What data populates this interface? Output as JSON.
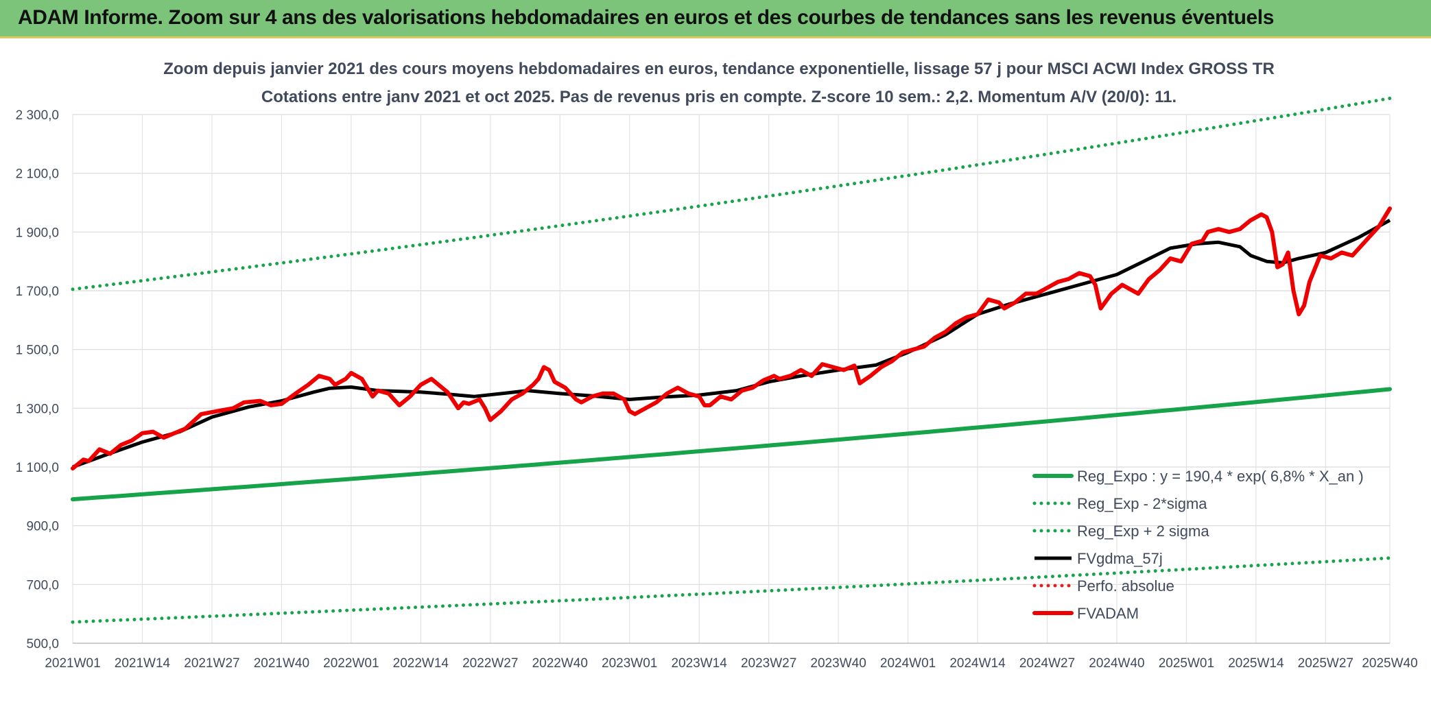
{
  "banner": {
    "title": "ADAM Informe. Zoom sur 4 ans des valorisations hebdomadaires en euros et des courbes de tendances sans les revenus éventuels"
  },
  "chart_data": {
    "type": "line",
    "title_line1": "Zoom depuis janvier 2021 des cours moyens hebdomadaires en euros, tendance exponentielle, lissage 57 j pour MSCI ACWI Index GROSS TR",
    "title_line2": "Cotations entre janv 2021 et oct 2025. Pas de revenus pris en compte. Z-score 10 sem.: 2,2. Momentum A/V (20/0): 11.",
    "ylim": [
      500,
      2300
    ],
    "y_ticks": [
      500,
      700,
      900,
      1100,
      1300,
      1500,
      1700,
      1900,
      2100,
      2300
    ],
    "y_tick_labels": [
      "500,0",
      "700,0",
      "900,0",
      "1 100,0",
      "1 300,0",
      "1 500,0",
      "1 700,0",
      "1 900,0",
      "2 100,0",
      "2 300,0"
    ],
    "x_range_weeks": [
      0,
      246
    ],
    "x_ticks": [
      0,
      13,
      26,
      39,
      52,
      65,
      78,
      91,
      104,
      117,
      130,
      143,
      156,
      169,
      182,
      195,
      208,
      221,
      234,
      246
    ],
    "x_tick_labels": [
      "2021W01",
      "2021W14",
      "2021W27",
      "2021W40",
      "2022W01",
      "2022W14",
      "2022W27",
      "2022W40",
      "2023W01",
      "2023W14",
      "2023W27",
      "2023W40",
      "2024W01",
      "2024W14",
      "2024W27",
      "2024W40",
      "2025W01",
      "2025W14",
      "2025W27",
      "2025W40"
    ],
    "legend_position": "bottom-right",
    "series": [
      {
        "name": "Reg_Expo : y = 190,4 * exp( 6,8% *  X_an )",
        "style": "solid-thick",
        "color": "#16a34a",
        "start": 990,
        "end": 1365
      },
      {
        "name": "Reg_Exp - 2*sigma",
        "style": "dotted",
        "color": "#16a34a",
        "start": 572,
        "end": 790
      },
      {
        "name": "Reg_Exp + 2 sigma",
        "style": "dotted",
        "color": "#16a34a",
        "start": 1705,
        "end": 2355
      },
      {
        "name": "FVgdma_57j",
        "style": "solid",
        "color": "#000000",
        "points": [
          [
            0,
            1100
          ],
          [
            6,
            1140
          ],
          [
            13,
            1185
          ],
          [
            20,
            1220
          ],
          [
            26,
            1270
          ],
          [
            33,
            1305
          ],
          [
            39,
            1325
          ],
          [
            45,
            1355
          ],
          [
            48,
            1368
          ],
          [
            52,
            1372
          ],
          [
            57,
            1360
          ],
          [
            65,
            1355
          ],
          [
            70,
            1348
          ],
          [
            75,
            1340
          ],
          [
            81,
            1352
          ],
          [
            85,
            1360
          ],
          [
            91,
            1350
          ],
          [
            97,
            1342
          ],
          [
            104,
            1330
          ],
          [
            110,
            1338
          ],
          [
            117,
            1345
          ],
          [
            124,
            1360
          ],
          [
            130,
            1390
          ],
          [
            136,
            1410
          ],
          [
            143,
            1430
          ],
          [
            150,
            1447
          ],
          [
            156,
            1490
          ],
          [
            163,
            1550
          ],
          [
            169,
            1620
          ],
          [
            175,
            1655
          ],
          [
            182,
            1690
          ],
          [
            188,
            1720
          ],
          [
            195,
            1755
          ],
          [
            200,
            1800
          ],
          [
            205,
            1845
          ],
          [
            210,
            1860
          ],
          [
            214,
            1865
          ],
          [
            218,
            1850
          ],
          [
            220,
            1820
          ],
          [
            223,
            1800
          ],
          [
            226,
            1795
          ],
          [
            229,
            1810
          ],
          [
            234,
            1830
          ],
          [
            240,
            1880
          ],
          [
            246,
            1940
          ]
        ]
      },
      {
        "name": "Perfo. absolue",
        "style": "dotted",
        "color": "#e02020",
        "points": []
      },
      {
        "name": "FVADAM",
        "style": "solid-thick",
        "color": "#ee0000",
        "points": [
          [
            0,
            1095
          ],
          [
            2,
            1125
          ],
          [
            3,
            1120
          ],
          [
            5,
            1160
          ],
          [
            7,
            1145
          ],
          [
            9,
            1175
          ],
          [
            11,
            1190
          ],
          [
            13,
            1215
          ],
          [
            15,
            1220
          ],
          [
            17,
            1200
          ],
          [
            19,
            1215
          ],
          [
            21,
            1230
          ],
          [
            24,
            1280
          ],
          [
            27,
            1290
          ],
          [
            30,
            1300
          ],
          [
            32,
            1320
          ],
          [
            35,
            1325
          ],
          [
            37,
            1310
          ],
          [
            39,
            1315
          ],
          [
            42,
            1355
          ],
          [
            44,
            1380
          ],
          [
            46,
            1410
          ],
          [
            48,
            1400
          ],
          [
            49,
            1380
          ],
          [
            51,
            1400
          ],
          [
            52,
            1420
          ],
          [
            54,
            1400
          ],
          [
            56,
            1340
          ],
          [
            57,
            1360
          ],
          [
            59,
            1350
          ],
          [
            61,
            1310
          ],
          [
            63,
            1340
          ],
          [
            65,
            1380
          ],
          [
            67,
            1400
          ],
          [
            69,
            1370
          ],
          [
            70,
            1355
          ],
          [
            72,
            1300
          ],
          [
            73,
            1320
          ],
          [
            74,
            1315
          ],
          [
            76,
            1330
          ],
          [
            77,
            1300
          ],
          [
            78,
            1260
          ],
          [
            80,
            1290
          ],
          [
            82,
            1330
          ],
          [
            84,
            1350
          ],
          [
            86,
            1380
          ],
          [
            87,
            1400
          ],
          [
            88,
            1440
          ],
          [
            89,
            1430
          ],
          [
            90,
            1390
          ],
          [
            92,
            1370
          ],
          [
            94,
            1330
          ],
          [
            95,
            1320
          ],
          [
            97,
            1340
          ],
          [
            99,
            1350
          ],
          [
            101,
            1350
          ],
          [
            103,
            1330
          ],
          [
            104,
            1290
          ],
          [
            105,
            1280
          ],
          [
            107,
            1300
          ],
          [
            109,
            1320
          ],
          [
            111,
            1350
          ],
          [
            113,
            1370
          ],
          [
            115,
            1350
          ],
          [
            117,
            1340
          ],
          [
            118,
            1310
          ],
          [
            119,
            1310
          ],
          [
            121,
            1340
          ],
          [
            123,
            1330
          ],
          [
            125,
            1360
          ],
          [
            127,
            1370
          ],
          [
            129,
            1395
          ],
          [
            131,
            1410
          ],
          [
            132,
            1400
          ],
          [
            134,
            1410
          ],
          [
            136,
            1430
          ],
          [
            138,
            1410
          ],
          [
            140,
            1450
          ],
          [
            142,
            1440
          ],
          [
            144,
            1430
          ],
          [
            146,
            1445
          ],
          [
            147,
            1385
          ],
          [
            149,
            1410
          ],
          [
            151,
            1440
          ],
          [
            153,
            1460
          ],
          [
            155,
            1490
          ],
          [
            157,
            1500
          ],
          [
            159,
            1510
          ],
          [
            161,
            1540
          ],
          [
            163,
            1560
          ],
          [
            165,
            1590
          ],
          [
            167,
            1610
          ],
          [
            169,
            1620
          ],
          [
            171,
            1670
          ],
          [
            173,
            1660
          ],
          [
            174,
            1640
          ],
          [
            176,
            1660
          ],
          [
            178,
            1690
          ],
          [
            180,
            1690
          ],
          [
            182,
            1710
          ],
          [
            184,
            1730
          ],
          [
            186,
            1740
          ],
          [
            188,
            1760
          ],
          [
            190,
            1750
          ],
          [
            191,
            1720
          ],
          [
            192,
            1640
          ],
          [
            194,
            1690
          ],
          [
            196,
            1720
          ],
          [
            198,
            1700
          ],
          [
            199,
            1690
          ],
          [
            201,
            1740
          ],
          [
            203,
            1770
          ],
          [
            205,
            1810
          ],
          [
            207,
            1800
          ],
          [
            209,
            1860
          ],
          [
            211,
            1870
          ],
          [
            212,
            1900
          ],
          [
            214,
            1910
          ],
          [
            216,
            1900
          ],
          [
            218,
            1910
          ],
          [
            220,
            1940
          ],
          [
            222,
            1960
          ],
          [
            223,
            1950
          ],
          [
            224,
            1900
          ],
          [
            225,
            1780
          ],
          [
            226,
            1790
          ],
          [
            227,
            1830
          ],
          [
            228,
            1700
          ],
          [
            229,
            1620
          ],
          [
            230,
            1650
          ],
          [
            231,
            1730
          ],
          [
            233,
            1820
          ],
          [
            235,
            1810
          ],
          [
            237,
            1830
          ],
          [
            239,
            1820
          ],
          [
            241,
            1860
          ],
          [
            243,
            1900
          ],
          [
            244,
            1920
          ],
          [
            246,
            1980
          ]
        ]
      }
    ]
  }
}
